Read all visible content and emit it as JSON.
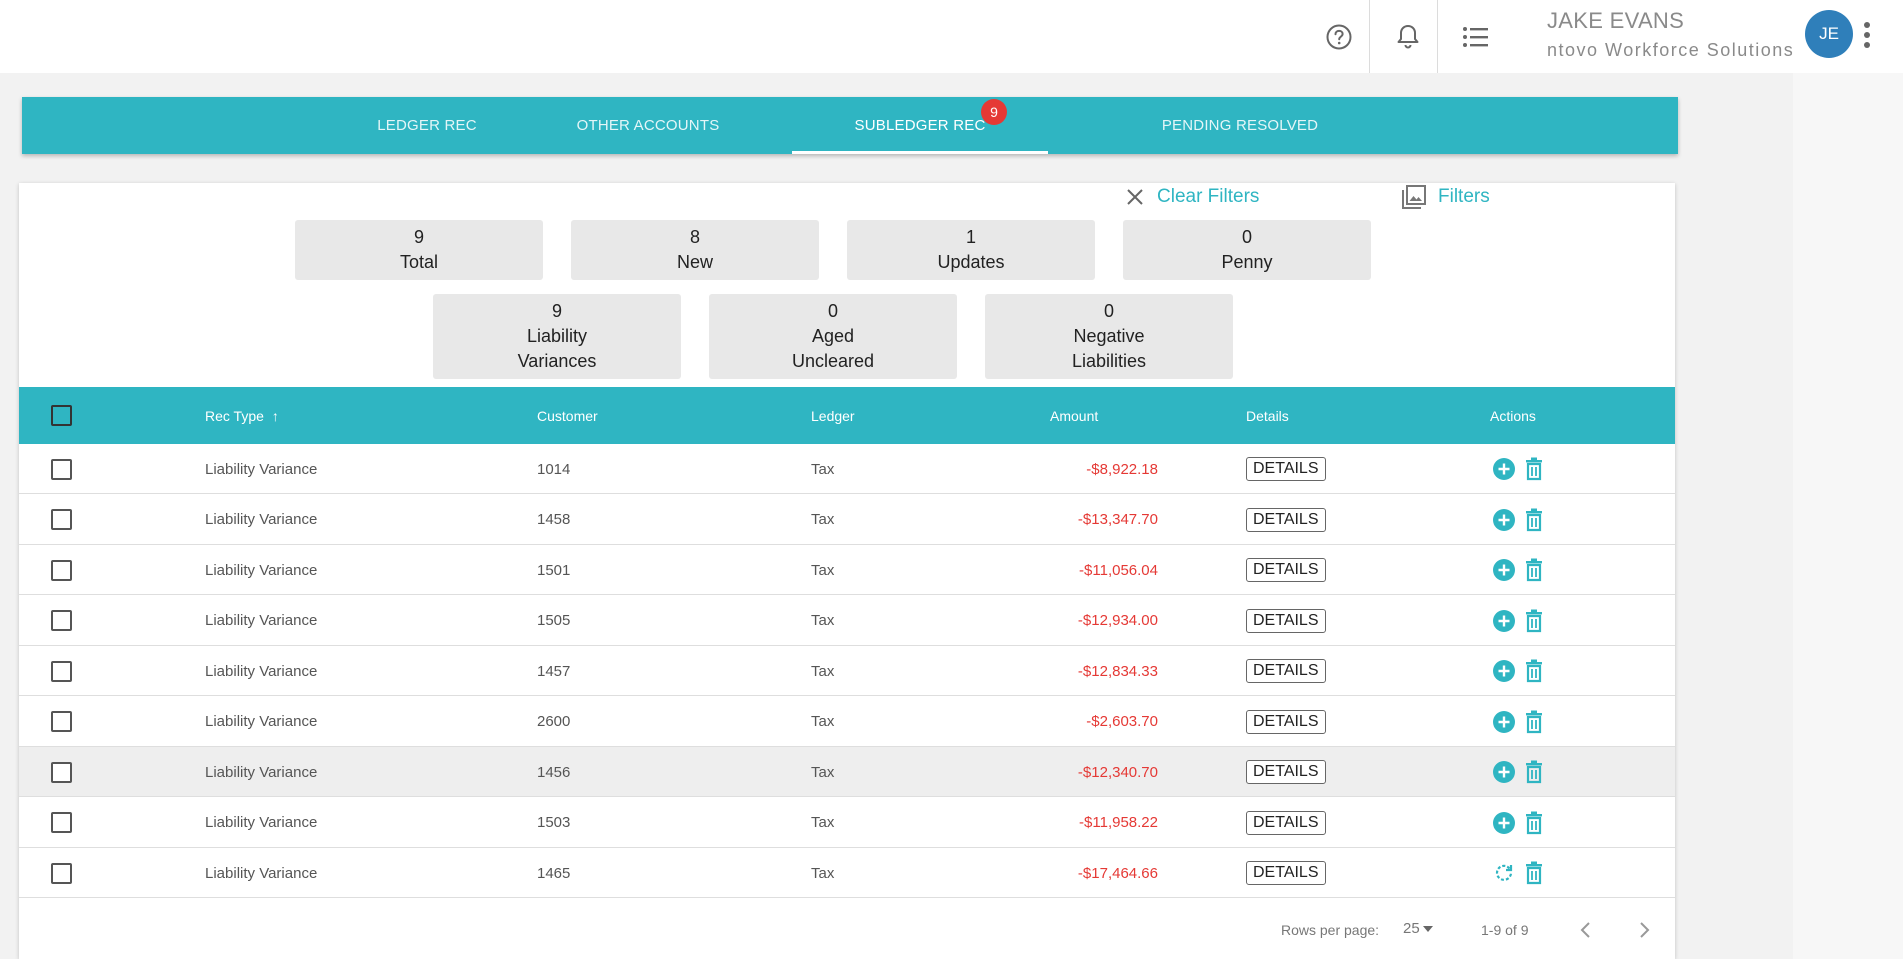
{
  "header": {
    "user_name": "JAKE EVANS",
    "organization": "ntovo Workforce Solutions",
    "avatar_initials": "JE"
  },
  "tabs": [
    {
      "label": "LEDGER REC"
    },
    {
      "label": "OTHER ACCOUNTS"
    },
    {
      "label": "SUBLEDGER REC",
      "badge": "9",
      "active": true
    },
    {
      "label": "PENDING RESOLVED"
    }
  ],
  "filters": {
    "clear_label": "Clear Filters",
    "filters_label": "Filters"
  },
  "stats": [
    {
      "value": "9",
      "label": "Total"
    },
    {
      "value": "8",
      "label": "New"
    },
    {
      "value": "1",
      "label": "Updates"
    },
    {
      "value": "0",
      "label": "Penny"
    },
    {
      "value": "9",
      "label_line1": "Liability",
      "label_line2": "Variances"
    },
    {
      "value": "0",
      "label_line1": "Aged",
      "label_line2": "Uncleared"
    },
    {
      "value": "0",
      "label_line1": "Negative",
      "label_line2": "Liabilities"
    }
  ],
  "table": {
    "columns": [
      "Rec Type",
      "Customer",
      "Ledger",
      "Amount",
      "Details",
      "Actions"
    ],
    "sort_indicator": "↑",
    "details_label": "DETAILS",
    "rows": [
      {
        "rec_type": "Liability Variance",
        "customer": "1014",
        "ledger": "Tax",
        "amount": "-$8,922.18",
        "action_icon": "add-circle-icon"
      },
      {
        "rec_type": "Liability Variance",
        "customer": "1458",
        "ledger": "Tax",
        "amount": "-$13,347.70",
        "action_icon": "add-circle-icon"
      },
      {
        "rec_type": "Liability Variance",
        "customer": "1501",
        "ledger": "Tax",
        "amount": "-$11,056.04",
        "action_icon": "add-circle-icon"
      },
      {
        "rec_type": "Liability Variance",
        "customer": "1505",
        "ledger": "Tax",
        "amount": "-$12,934.00",
        "action_icon": "add-circle-icon"
      },
      {
        "rec_type": "Liability Variance",
        "customer": "1457",
        "ledger": "Tax",
        "amount": "-$12,834.33",
        "action_icon": "add-circle-icon"
      },
      {
        "rec_type": "Liability Variance",
        "customer": "2600",
        "ledger": "Tax",
        "amount": "-$2,603.70",
        "action_icon": "add-circle-icon"
      },
      {
        "rec_type": "Liability Variance",
        "customer": "1456",
        "ledger": "Tax",
        "amount": "-$12,340.70",
        "action_icon": "add-circle-icon",
        "highlighted": true
      },
      {
        "rec_type": "Liability Variance",
        "customer": "1503",
        "ledger": "Tax",
        "amount": "-$11,958.22",
        "action_icon": "add-circle-icon"
      },
      {
        "rec_type": "Liability Variance",
        "customer": "1465",
        "ledger": "Tax",
        "amount": "-$17,464.66",
        "action_icon": "refresh-icon"
      }
    ]
  },
  "pagination": {
    "rows_per_page_label": "Rows per page:",
    "rows_per_page": "25",
    "range": "1-9 of 9"
  },
  "colors": {
    "accent": "#2fb5c2",
    "negative_amount": "#e53935",
    "badge": "#e53935",
    "avatar": "#2f7fba"
  }
}
